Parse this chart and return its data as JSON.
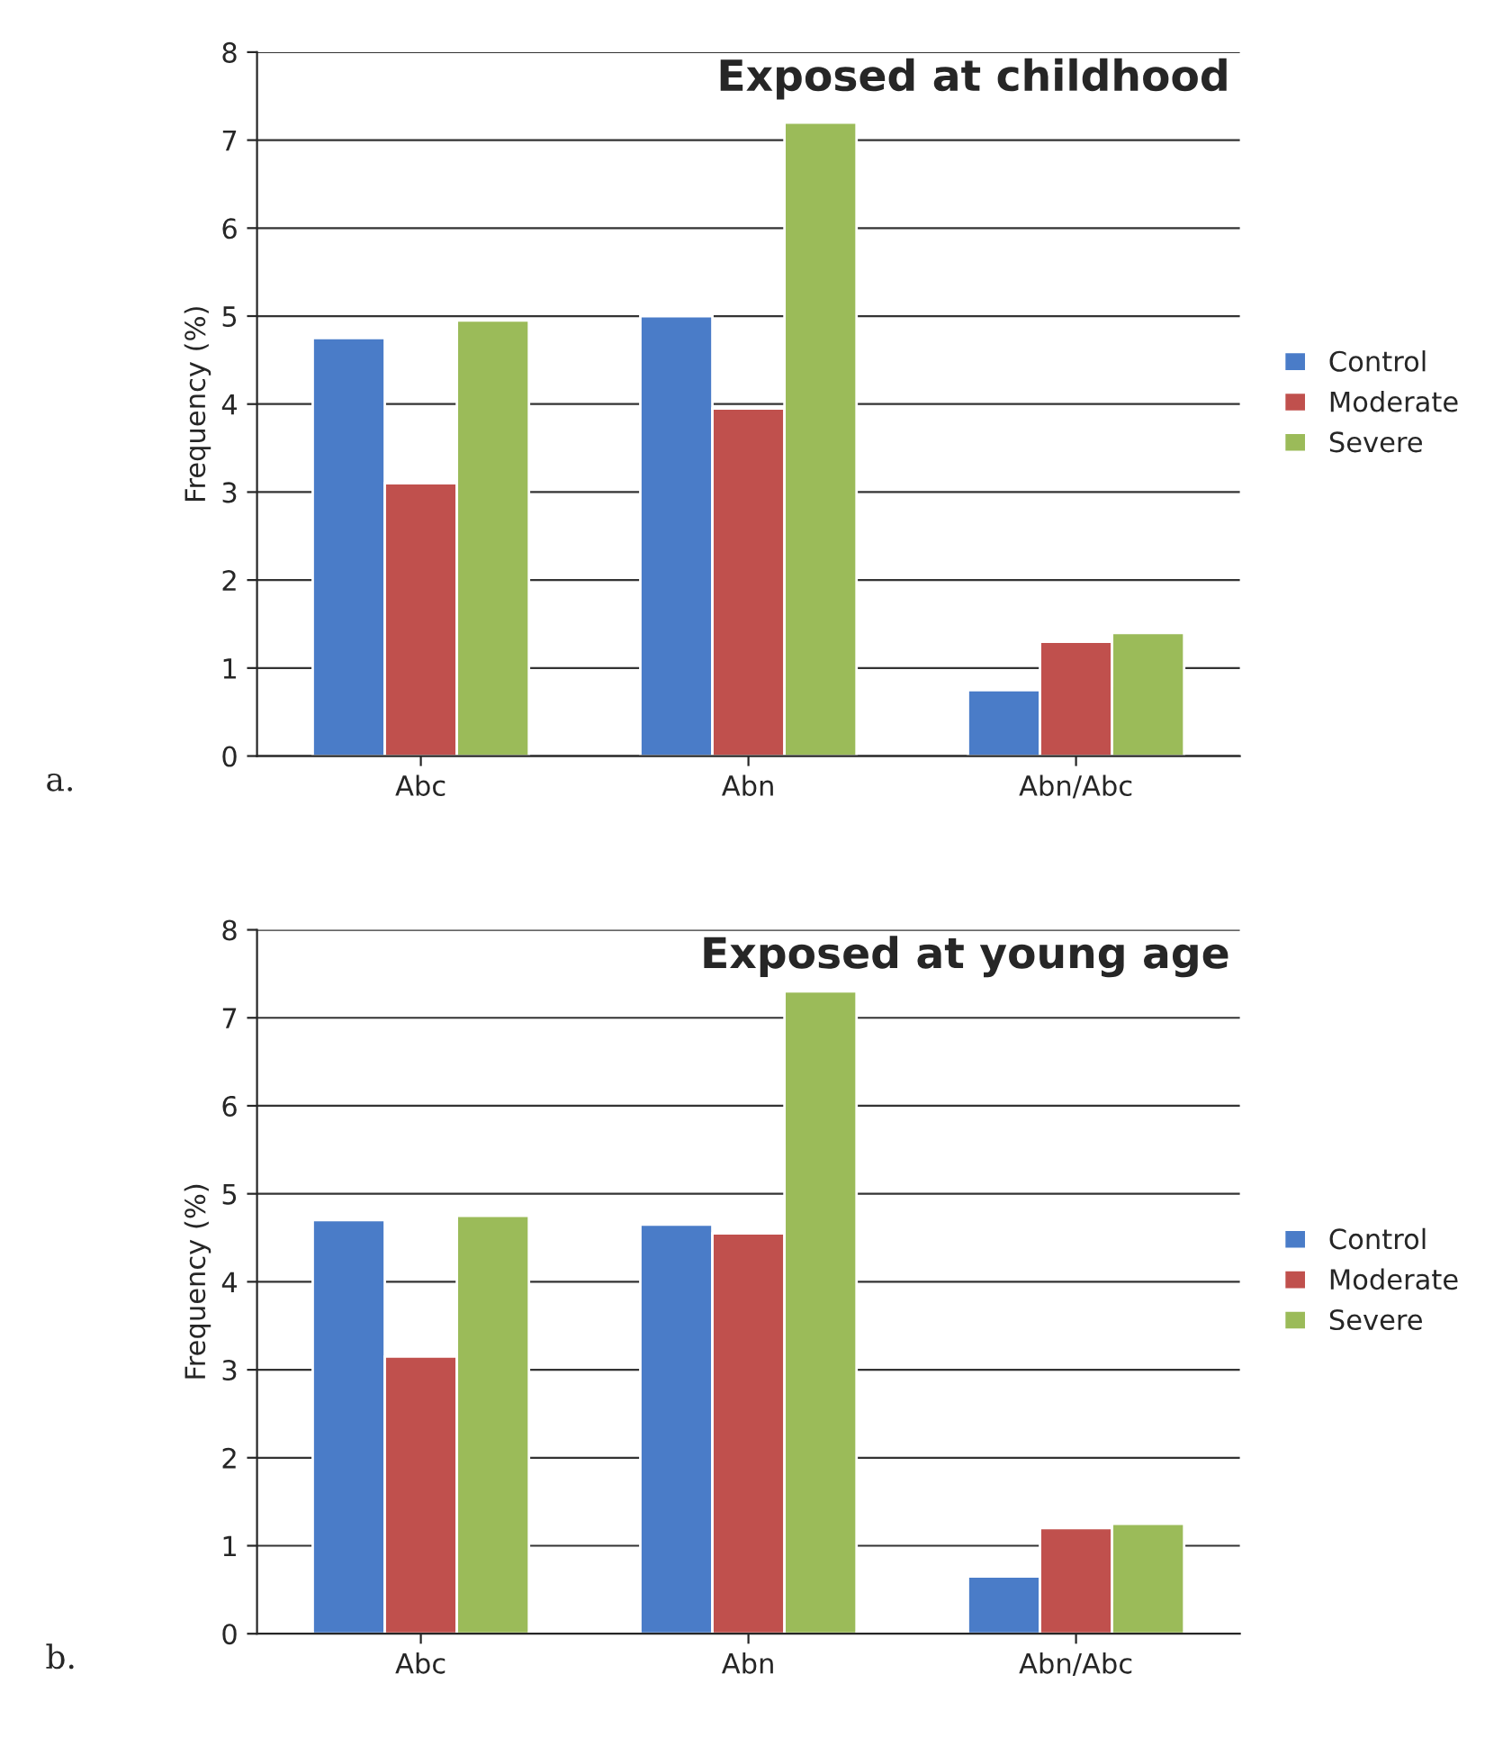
{
  "chart_data": [
    {
      "type": "bar",
      "title": "Exposed at childhood",
      "ylabel": "Frequency (%)",
      "categories": [
        "Abc",
        "Abn",
        "Abn/Abc"
      ],
      "series": [
        {
          "name": "Control",
          "color": "#4a7cc8",
          "values": [
            4.75,
            5.0,
            0.75
          ]
        },
        {
          "name": "Moderate",
          "color": "#c0504d",
          "values": [
            3.1,
            3.95,
            1.3
          ]
        },
        {
          "name": "Severe",
          "color": "#9bbb59",
          "values": [
            4.95,
            7.2,
            1.4
          ]
        }
      ],
      "ylim": [
        0,
        8
      ],
      "yticks": [
        0,
        1,
        2,
        3,
        4,
        5,
        6,
        7,
        8
      ],
      "grid": "y",
      "legend": "right",
      "annotations": [
        "a."
      ]
    },
    {
      "type": "bar",
      "title": "Exposed at young age",
      "ylabel": "Frequency (%)",
      "categories": [
        "Abc",
        "Abn",
        "Abn/Abc"
      ],
      "series": [
        {
          "name": "Control",
          "color": "#4a7cc8",
          "values": [
            4.7,
            4.65,
            0.65
          ]
        },
        {
          "name": "Moderate",
          "color": "#c0504d",
          "values": [
            3.15,
            4.55,
            1.2
          ]
        },
        {
          "name": "Severe",
          "color": "#9bbb59",
          "values": [
            4.75,
            7.3,
            1.25
          ]
        }
      ],
      "ylim": [
        0,
        8
      ],
      "yticks": [
        0,
        1,
        2,
        3,
        4,
        5,
        6,
        7,
        8
      ],
      "grid": "y",
      "legend": "right",
      "annotations": [
        "b."
      ]
    }
  ]
}
